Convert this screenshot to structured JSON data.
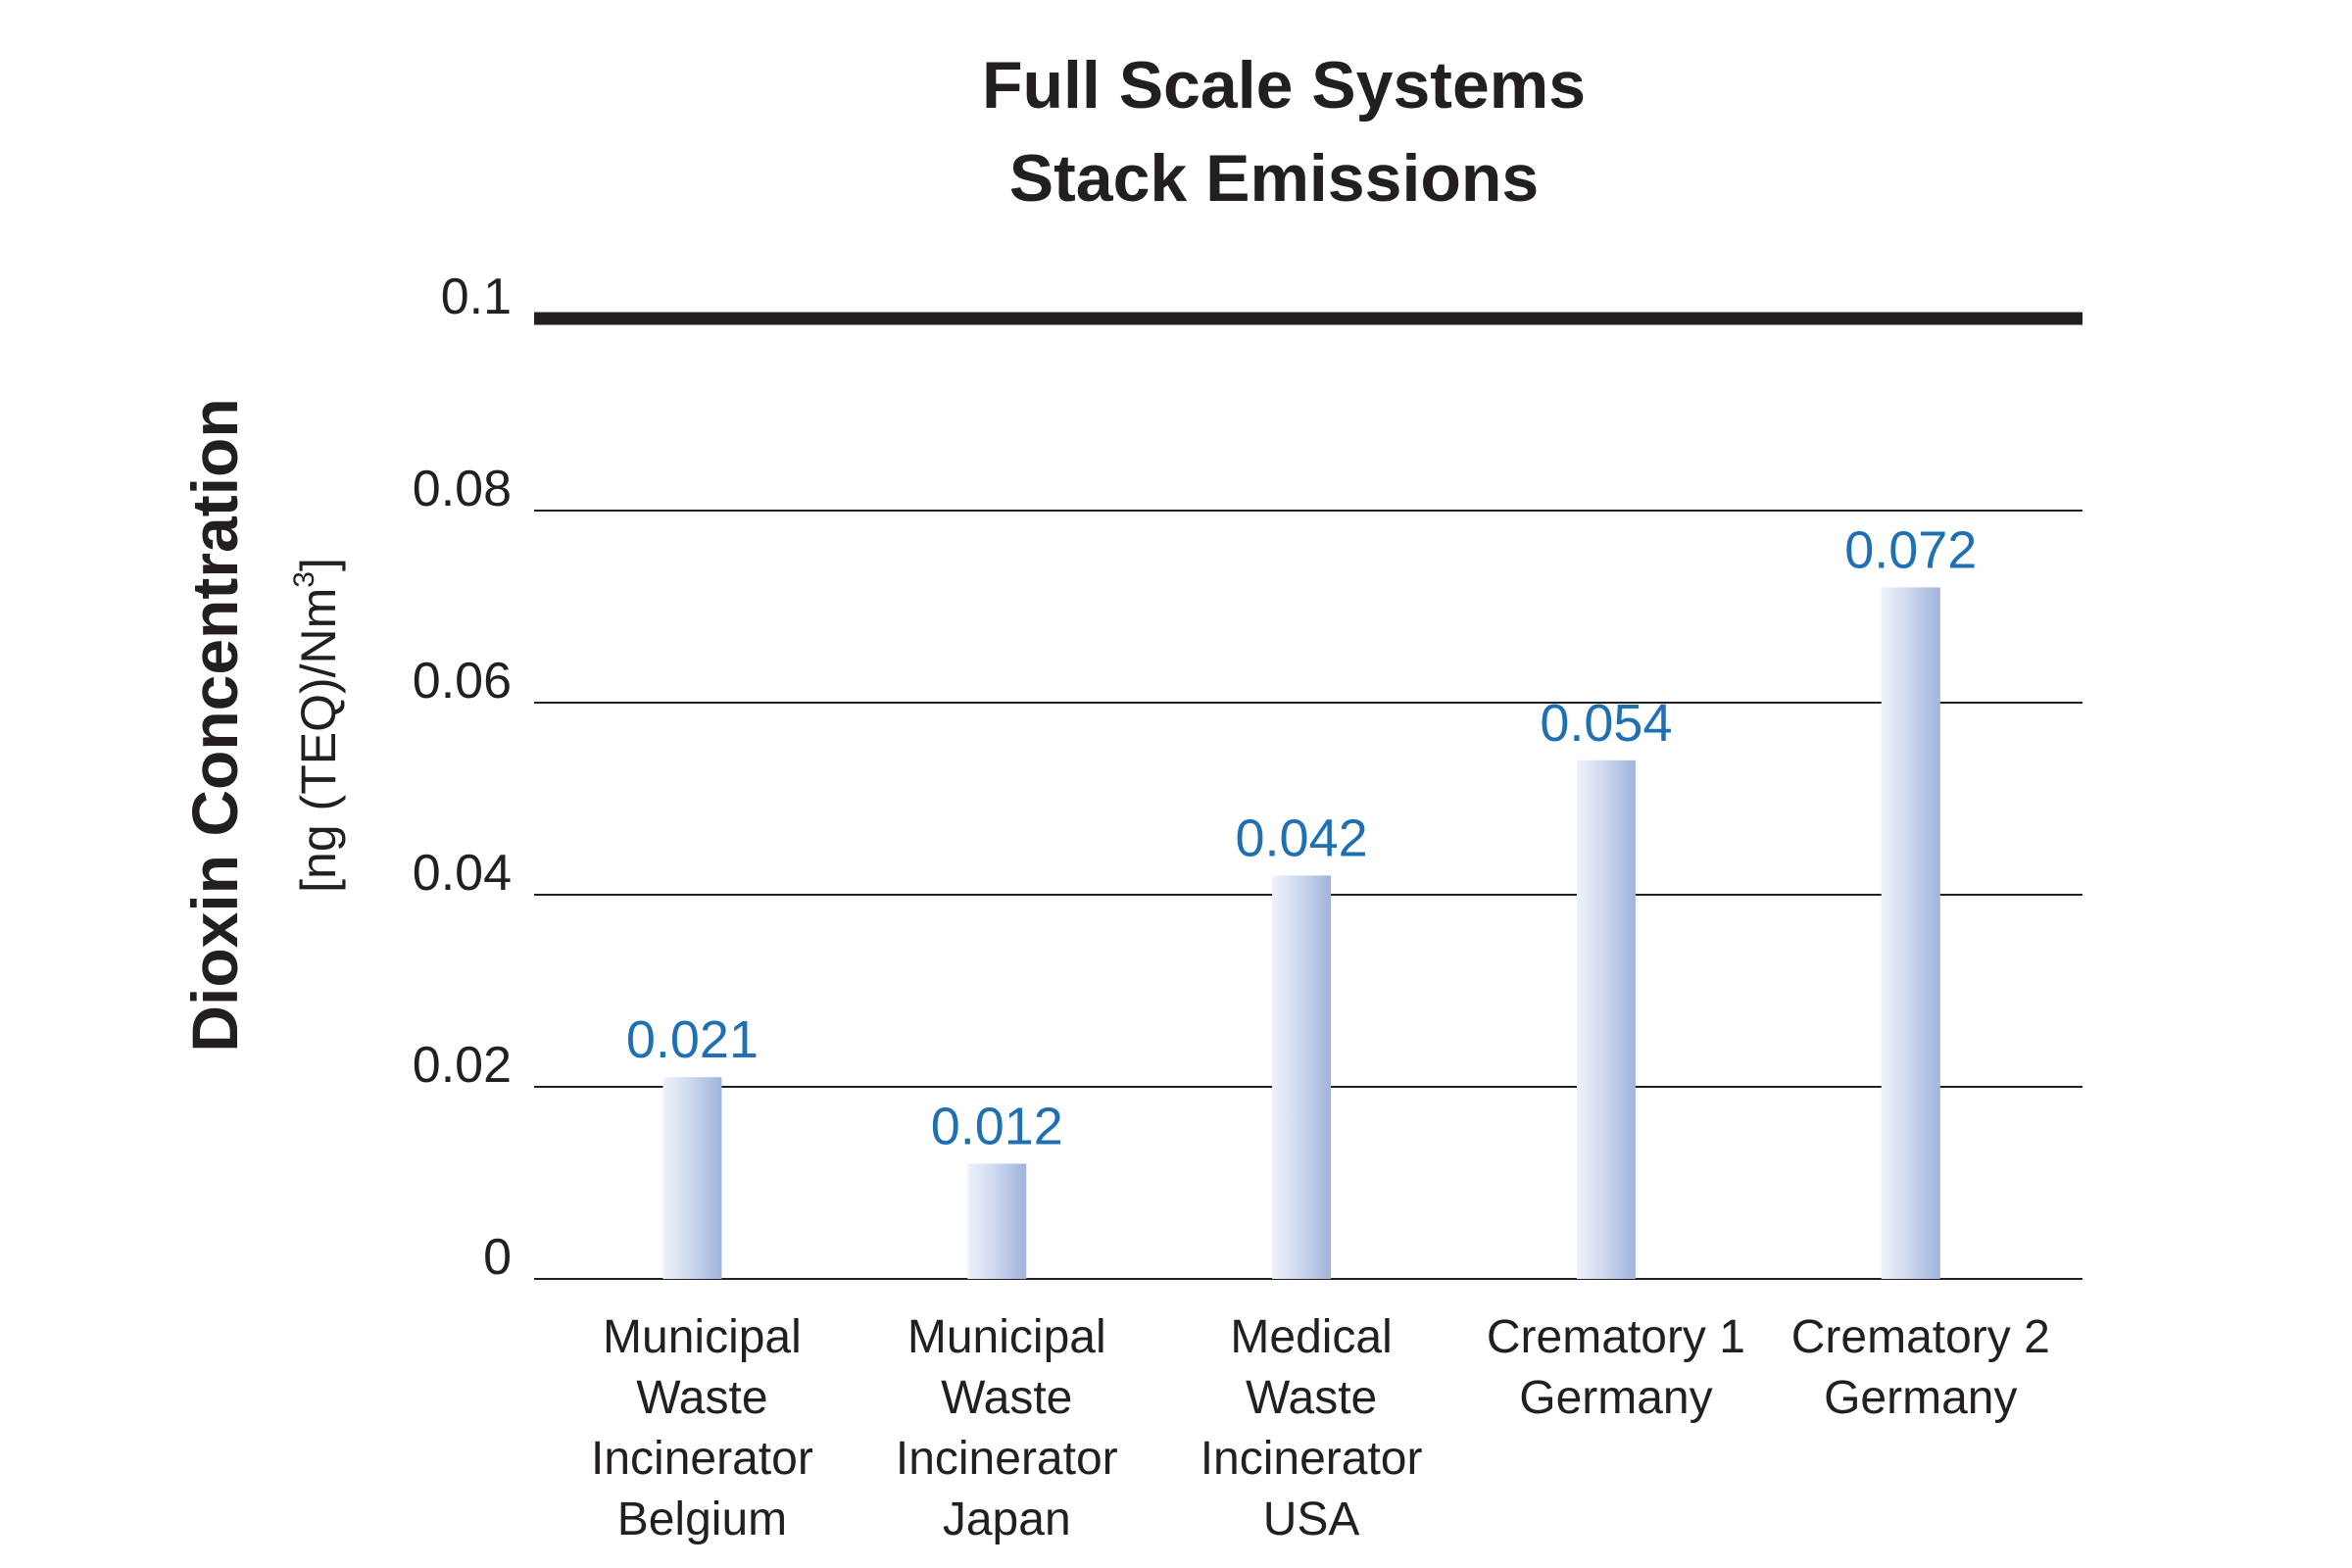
{
  "chart_data": {
    "type": "bar",
    "title": [
      "Full Scale Systems",
      "Stack Emissions"
    ],
    "ylabel": "Dioxin Concentration",
    "ylabel_unit": "[ng (TEQ)/Nm",
    "ylabel_unit_sup": "3",
    "ylabel_unit_close": "]",
    "ylim": [
      0,
      0.1
    ],
    "yticks": [
      0,
      0.02,
      0.04,
      0.06,
      0.08,
      0.1
    ],
    "ytick_labels": [
      "0",
      "0.02",
      "0.04",
      "0.06",
      "0.08",
      "0.1"
    ],
    "grid": true,
    "reference_line": 0.1,
    "categories": [
      [
        "Municipal",
        "Waste",
        "Incinerator",
        "Belgium"
      ],
      [
        "Municipal",
        "Waste",
        "Incinerator",
        "Japan"
      ],
      [
        "Medical",
        "Waste",
        "Incinerator",
        "USA"
      ],
      [
        "Crematory 1",
        "Germany"
      ],
      [
        "Crematory 2",
        "Germany"
      ]
    ],
    "values": [
      0.021,
      0.012,
      0.042,
      0.054,
      0.072
    ],
    "data_labels": [
      "0.021",
      "0.012",
      "0.042",
      "0.054",
      "0.072"
    ],
    "colors": {
      "bar_light": "#e8edf8",
      "bar_mid": "#c7d3ec",
      "bar_dark": "#9fb3dd",
      "data_label": "#1f6fb4",
      "axis": "#231f20"
    }
  }
}
